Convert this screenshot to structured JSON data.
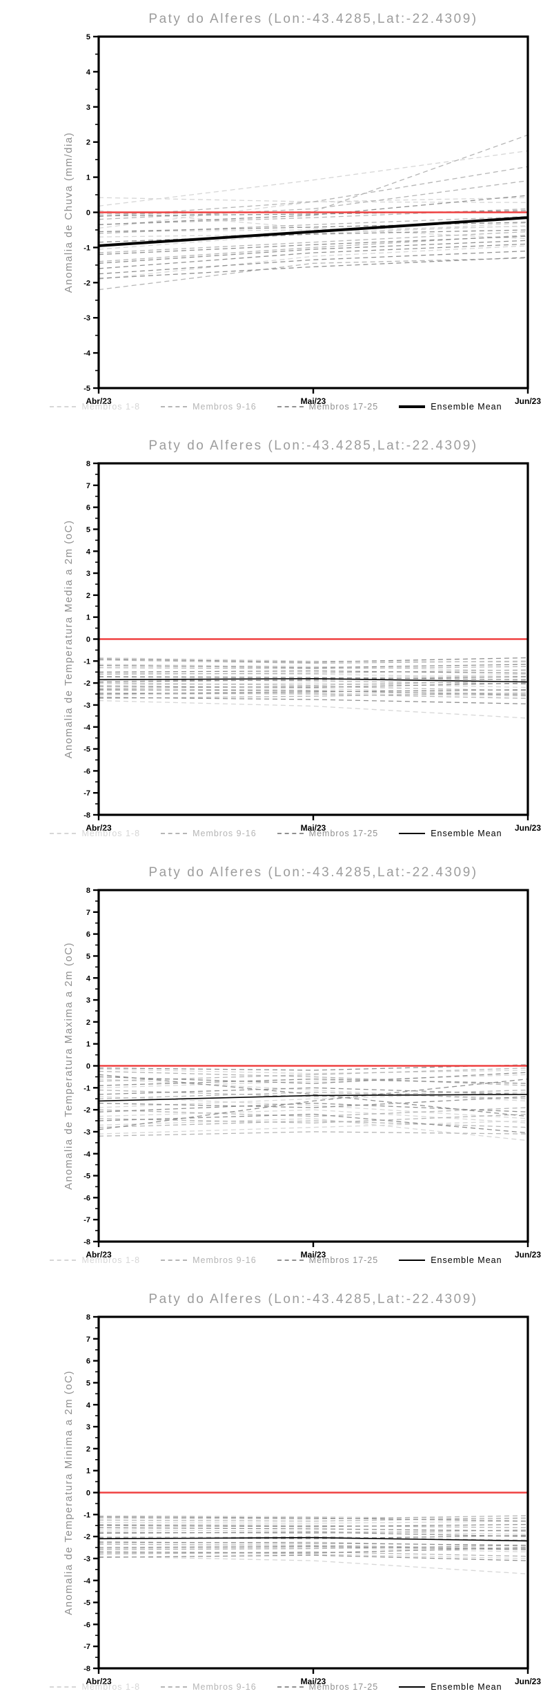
{
  "window": {
    "background": "#ffffff"
  },
  "colors": {
    "title_gray": "#9c9c9c",
    "axis_black": "#000000",
    "zero_reference_red": "#ef4040",
    "members_1_8_gray": "#d6d6d6",
    "members_9_16_gray": "#b5b5b5",
    "members_17_25_gray": "#909090",
    "ensemble_mean_black": "#000000"
  },
  "chart_data": [
    {
      "type": "line",
      "title": "Paty do Alferes (Lon:-43.4285,Lat:-22.4309)",
      "ylabel": "Anomalia de Chuva (mm/dia)",
      "x": [
        "Abr/23",
        "Mai/23",
        "Jun/23"
      ],
      "ylim": [
        -5,
        5
      ],
      "y_tick_step": 1,
      "grid": false,
      "legend_position": "bottom",
      "reference_line_y": 0,
      "series": [
        {
          "name": "Membros 1-8",
          "style": "dashed",
          "color": "#d6d6d6",
          "members": [
            [
              0.42,
              0.3,
              0.28
            ],
            [
              0.18,
              0.92,
              1.75
            ],
            [
              0.05,
              -0.45,
              -0.75
            ],
            [
              -0.45,
              0.3,
              0.42
            ],
            [
              -0.55,
              -0.5,
              -0.4
            ],
            [
              -0.7,
              -0.62,
              -0.3
            ],
            [
              -1.05,
              -0.6,
              -0.38
            ],
            [
              -1.9,
              -1.25,
              -0.95
            ]
          ]
        },
        {
          "name": "Membros 9-16",
          "style": "dashed",
          "color": "#b5b5b5",
          "members": [
            [
              -0.05,
              0.02,
              2.2
            ],
            [
              -0.12,
              0.3,
              1.3
            ],
            [
              -0.2,
              0.1,
              0.9
            ],
            [
              -0.35,
              -0.15,
              0.1
            ],
            [
              -0.6,
              -0.35,
              -0.12
            ],
            [
              -1.15,
              -0.85,
              -0.55
            ],
            [
              -1.4,
              -1.0,
              -0.65
            ],
            [
              -2.2,
              -1.45,
              -1.3
            ]
          ]
        },
        {
          "name": "Membros 17-25",
          "style": "dashed",
          "color": "#909090",
          "members": [
            [
              -0.1,
              -0.05,
              0.05
            ],
            [
              -0.35,
              -0.08,
              0.48
            ],
            [
              -0.55,
              -0.42,
              -0.28
            ],
            [
              -0.85,
              -0.62,
              -0.5
            ],
            [
              -1.2,
              -0.92,
              -0.68
            ],
            [
              -1.45,
              -1.05,
              -0.8
            ],
            [
              -1.6,
              -1.15,
              -0.9
            ],
            [
              -1.75,
              -1.35,
              -1.1
            ],
            [
              -1.88,
              -1.55,
              -1.28
            ]
          ]
        },
        {
          "name": "Ensemble Mean",
          "style": "solid",
          "thick": true,
          "color": "#000000",
          "members": [
            [
              -0.95,
              -0.55,
              -0.15
            ]
          ]
        }
      ]
    },
    {
      "type": "line",
      "title": "Paty do Alferes (Lon:-43.4285,Lat:-22.4309)",
      "ylabel": "Anomalia de Temperatura Media a 2m (oC)",
      "x": [
        "Abr/23",
        "Mai/23",
        "Jun/23"
      ],
      "ylim": [
        -8,
        8
      ],
      "y_tick_step": 1,
      "grid": false,
      "legend_position": "bottom",
      "reference_line_y": 0,
      "series": [
        {
          "name": "Membros 1-8",
          "style": "dashed",
          "color": "#d6d6d6",
          "members": [
            [
              -0.85,
              -1.0,
              -1.05
            ],
            [
              -1.15,
              -1.25,
              -1.45
            ],
            [
              -1.55,
              -1.6,
              -1.75
            ],
            [
              -1.75,
              -1.8,
              -1.6
            ],
            [
              -2.1,
              -2.0,
              -2.2
            ],
            [
              -2.35,
              -2.25,
              -2.5
            ],
            [
              -2.55,
              -2.45,
              -2.6
            ],
            [
              -2.8,
              -3.05,
              -3.6
            ]
          ]
        },
        {
          "name": "Membros 9-16",
          "style": "dashed",
          "color": "#b5b5b5",
          "members": [
            [
              -0.95,
              -1.1,
              -1.0
            ],
            [
              -1.3,
              -1.35,
              -1.25
            ],
            [
              -1.6,
              -1.55,
              -1.4
            ],
            [
              -1.85,
              -1.9,
              -2.05
            ],
            [
              -2.0,
              -2.1,
              -1.9
            ],
            [
              -2.25,
              -2.15,
              -2.35
            ],
            [
              -2.45,
              -2.5,
              -2.7
            ],
            [
              -2.7,
              -2.6,
              -2.45
            ]
          ]
        },
        {
          "name": "Membros 17-25",
          "style": "dashed",
          "color": "#909090",
          "members": [
            [
              -0.9,
              -1.05,
              -0.85
            ],
            [
              -1.2,
              -1.3,
              -1.15
            ],
            [
              -1.5,
              -1.45,
              -1.55
            ],
            [
              -1.7,
              -1.75,
              -1.85
            ],
            [
              -1.95,
              -1.85,
              -1.7
            ],
            [
              -2.15,
              -2.2,
              -2.0
            ],
            [
              -2.3,
              -2.35,
              -2.55
            ],
            [
              -2.5,
              -2.4,
              -2.3
            ],
            [
              -2.65,
              -2.75,
              -2.95
            ]
          ]
        },
        {
          "name": "Ensemble Mean",
          "style": "solid",
          "thick": false,
          "color": "#000000",
          "members": [
            [
              -1.85,
              -1.8,
              -1.95
            ]
          ]
        }
      ]
    },
    {
      "type": "line",
      "title": "Paty do Alferes (Lon:-43.4285,Lat:-22.4309)",
      "ylabel": "Anomalia de Temperatura Maxima a 2m (oC)",
      "x": [
        "Abr/23",
        "Mai/23",
        "Jun/23"
      ],
      "ylim": [
        -8,
        8
      ],
      "y_tick_step": 1,
      "grid": false,
      "legend_position": "bottom",
      "reference_line_y": 0,
      "series": [
        {
          "name": "Membros 1-8",
          "style": "dashed",
          "color": "#d6d6d6",
          "members": [
            [
              -0.15,
              -0.35,
              -0.2
            ],
            [
              -0.6,
              -1.1,
              -1.6
            ],
            [
              -1.0,
              -0.7,
              -0.4
            ],
            [
              -1.4,
              -1.8,
              -2.4
            ],
            [
              -1.9,
              -1.5,
              -1.2
            ],
            [
              -2.3,
              -2.0,
              -2.6
            ],
            [
              -2.7,
              -2.4,
              -3.4
            ],
            [
              -3.1,
              -2.8,
              -2.5
            ]
          ]
        },
        {
          "name": "Membros 9-16",
          "style": "dashed",
          "color": "#b5b5b5",
          "members": [
            [
              -0.25,
              -0.5,
              -0.9
            ],
            [
              -0.7,
              -0.4,
              -0.1
            ],
            [
              -1.1,
              -1.4,
              -1.1
            ],
            [
              -1.5,
              -1.2,
              -1.5
            ],
            [
              -2.0,
              -2.3,
              -1.9
            ],
            [
              -2.4,
              -2.6,
              -2.2
            ],
            [
              -2.8,
              -2.5,
              -2.8
            ],
            [
              -3.2,
              -3.0,
              -3.1
            ]
          ]
        },
        {
          "name": "Membros 17-25",
          "style": "dashed",
          "color": "#909090",
          "members": [
            [
              -0.1,
              -0.2,
              0.05
            ],
            [
              -0.5,
              -0.8,
              -0.3
            ],
            [
              -0.9,
              -0.6,
              -0.8
            ],
            [
              -1.3,
              -1.0,
              -1.3
            ],
            [
              -1.7,
              -1.9,
              -1.4
            ],
            [
              -2.1,
              -1.7,
              -2.1
            ],
            [
              -2.5,
              -2.2,
              -3.05
            ],
            [
              -2.9,
              -1.6,
              -0.6
            ],
            [
              -0.4,
              -1.3,
              -2.3
            ]
          ]
        },
        {
          "name": "Ensemble Mean",
          "style": "solid",
          "thick": false,
          "color": "#000000",
          "members": [
            [
              -1.6,
              -1.35,
              -1.3
            ]
          ]
        }
      ]
    },
    {
      "type": "line",
      "title": "Paty do Alferes (Lon:-43.4285,Lat:-22.4309)",
      "ylabel": "Anomalia de Temperatura Minima a 2m (oC)",
      "x": [
        "Abr/23",
        "Mai/23",
        "Jun/23"
      ],
      "ylim": [
        -8,
        8
      ],
      "y_tick_step": 1,
      "grid": false,
      "legend_position": "bottom",
      "reference_line_y": 0,
      "series": [
        {
          "name": "Membros 1-8",
          "style": "dashed",
          "color": "#d6d6d6",
          "members": [
            [
              -1.05,
              -1.1,
              -1.2
            ],
            [
              -1.35,
              -1.4,
              -1.3
            ],
            [
              -1.7,
              -1.75,
              -1.9
            ],
            [
              -2.0,
              -2.05,
              -2.15
            ],
            [
              -2.3,
              -2.25,
              -2.45
            ],
            [
              -2.55,
              -2.5,
              -2.7
            ],
            [
              -2.75,
              -2.8,
              -3.0
            ],
            [
              -2.9,
              -3.1,
              -3.7
            ]
          ]
        },
        {
          "name": "Membros 9-16",
          "style": "dashed",
          "color": "#b5b5b5",
          "members": [
            [
              -1.15,
              -1.2,
              -1.05
            ],
            [
              -1.45,
              -1.5,
              -1.6
            ],
            [
              -1.8,
              -1.85,
              -1.7
            ],
            [
              -2.1,
              -2.0,
              -2.2
            ],
            [
              -2.35,
              -2.4,
              -2.55
            ],
            [
              -2.6,
              -2.55,
              -2.4
            ],
            [
              -2.8,
              -2.7,
              -2.9
            ],
            [
              -1.25,
              -1.3,
              -1.15
            ]
          ]
        },
        {
          "name": "Membros 17-25",
          "style": "dashed",
          "color": "#909090",
          "members": [
            [
              -1.1,
              -1.15,
              -1.3
            ],
            [
              -1.5,
              -1.55,
              -1.45
            ],
            [
              -1.85,
              -1.8,
              -2.0
            ],
            [
              -2.05,
              -2.1,
              -1.95
            ],
            [
              -2.25,
              -2.3,
              -2.4
            ],
            [
              -2.5,
              -2.45,
              -2.6
            ],
            [
              -2.7,
              -2.75,
              -2.5
            ],
            [
              -2.95,
              -2.85,
              -3.1
            ],
            [
              -1.6,
              -1.65,
              -1.75
            ]
          ]
        },
        {
          "name": "Ensemble Mean",
          "style": "solid",
          "thick": false,
          "color": "#000000",
          "members": [
            [
              -2.1,
              -2.05,
              -2.2
            ]
          ]
        }
      ]
    }
  ]
}
